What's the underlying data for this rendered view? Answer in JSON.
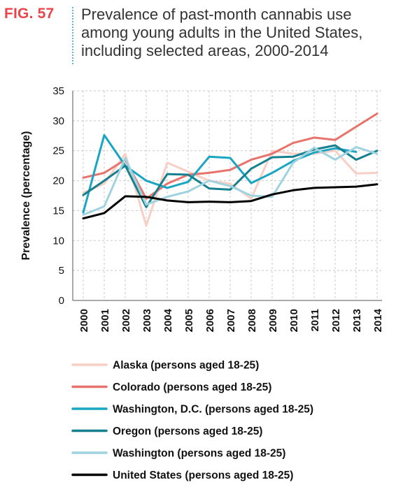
{
  "figure": {
    "label": "FIG. 57",
    "title": "Prevalence of past-month cannabis use among young adults in the United States, including selected areas, 2000-2014"
  },
  "chart_data": {
    "type": "line",
    "x": [
      "2000",
      "2001",
      "2002",
      "2003",
      "2004",
      "2005",
      "2006",
      "2007",
      "2008",
      "2009",
      "2010",
      "2011",
      "2012",
      "2013",
      "2014"
    ],
    "ylabel": "Prevalence (percentage)",
    "xlabel": "",
    "ylim": [
      0,
      35
    ],
    "yticks": [
      0,
      5,
      10,
      15,
      20,
      25,
      30,
      35
    ],
    "grid": true,
    "legend_position": "bottom",
    "series": [
      {
        "name": "Alaska (persons aged 18-25)",
        "color": "#f8cfc5",
        "values": [
          18.0,
          19.5,
          24.5,
          12.5,
          23.0,
          21.5,
          20.0,
          19.5,
          17.0,
          25.0,
          24.5,
          24.5,
          25.0,
          21.2,
          21.3
        ]
      },
      {
        "name": "Colorado (persons aged 18-25)",
        "color": "#e8736c",
        "values": [
          20.5,
          21.3,
          23.5,
          17.0,
          19.5,
          21.0,
          21.3,
          21.8,
          23.5,
          24.5,
          26.3,
          27.2,
          26.8,
          29.0,
          31.2
        ]
      },
      {
        "name": "Washington, D.C. (persons aged 18-25)",
        "color": "#1aa6c2",
        "values": [
          14.7,
          27.6,
          22.5,
          20.0,
          18.8,
          19.8,
          24.0,
          23.8,
          19.6,
          21.3,
          23.3,
          24.7,
          25.4,
          24.8,
          null
        ]
      },
      {
        "name": "Oregon (persons aged 18-25)",
        "color": "#16808f",
        "values": [
          17.6,
          20.0,
          22.5,
          15.6,
          21.1,
          21.0,
          18.7,
          18.5,
          22.0,
          23.9,
          24.0,
          25.2,
          25.9,
          23.5,
          25.0
        ]
      },
      {
        "name": "Washington (persons aged 18-25)",
        "color": "#9fd3df",
        "values": [
          14.3,
          15.7,
          23.8,
          16.0,
          17.3,
          18.2,
          20.0,
          19.1,
          17.5,
          17.3,
          23.0,
          25.5,
          23.5,
          25.6,
          24.5
        ]
      },
      {
        "name": "United States (persons aged 18-25)",
        "color": "#000000",
        "values": [
          13.7,
          14.6,
          17.4,
          17.3,
          16.7,
          16.4,
          16.5,
          16.4,
          16.6,
          17.7,
          18.4,
          18.8,
          18.9,
          19.0,
          19.4
        ]
      }
    ]
  }
}
